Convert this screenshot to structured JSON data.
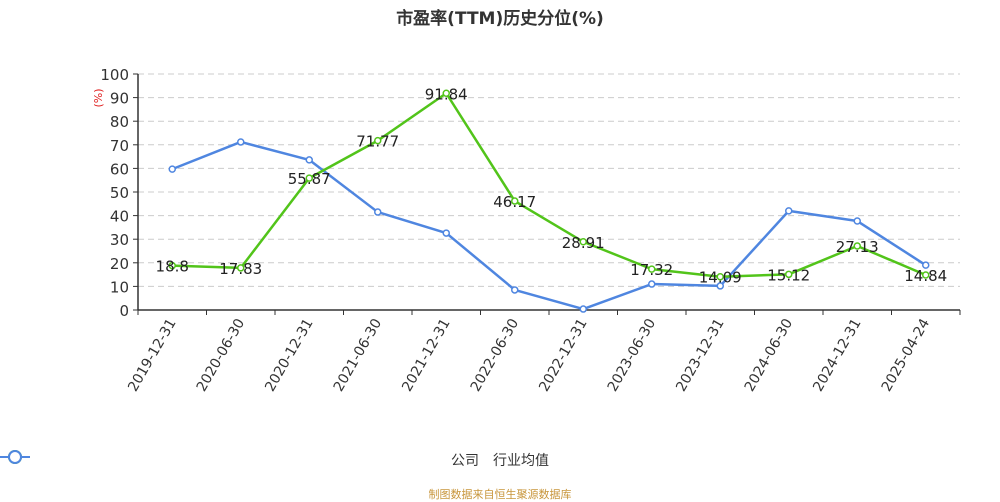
{
  "title": "市盈率(TTM)历史分位(%)",
  "source": "制图数据来自恒生聚源数据库",
  "legend": [
    {
      "name": "公司",
      "color": "#52c41a"
    },
    {
      "name": "行业均值",
      "color": "#4f86e0"
    }
  ],
  "chart_data": {
    "type": "line",
    "title": "市盈率(TTM)历史分位(%)",
    "xlabel": "",
    "ylabel": "(%)",
    "ylim": [
      0,
      100
    ],
    "yticks": [
      0,
      10,
      20,
      30,
      40,
      50,
      60,
      70,
      80,
      90,
      100
    ],
    "grid": true,
    "legend_position": "bottom",
    "categories": [
      "2019-12-31",
      "2020-06-30",
      "2020-12-31",
      "2021-06-30",
      "2021-12-31",
      "2022-06-30",
      "2022-12-31",
      "2023-06-30",
      "2023-12-31",
      "2024-06-30",
      "2024-12-31",
      "2025-04-24"
    ],
    "series": [
      {
        "name": "公司",
        "color": "#52c41a",
        "values": [
          18.8,
          17.83,
          55.87,
          71.77,
          91.84,
          46.17,
          28.91,
          17.32,
          14.09,
          15.12,
          27.13,
          14.84
        ],
        "labels_shown": true
      },
      {
        "name": "行业均值",
        "color": "#4f86e0",
        "values": [
          59.7,
          71.2,
          63.6,
          41.5,
          32.6,
          8.5,
          0.4,
          11.0,
          10.2,
          42.0,
          37.7,
          19.0
        ],
        "labels_shown": false
      }
    ]
  }
}
